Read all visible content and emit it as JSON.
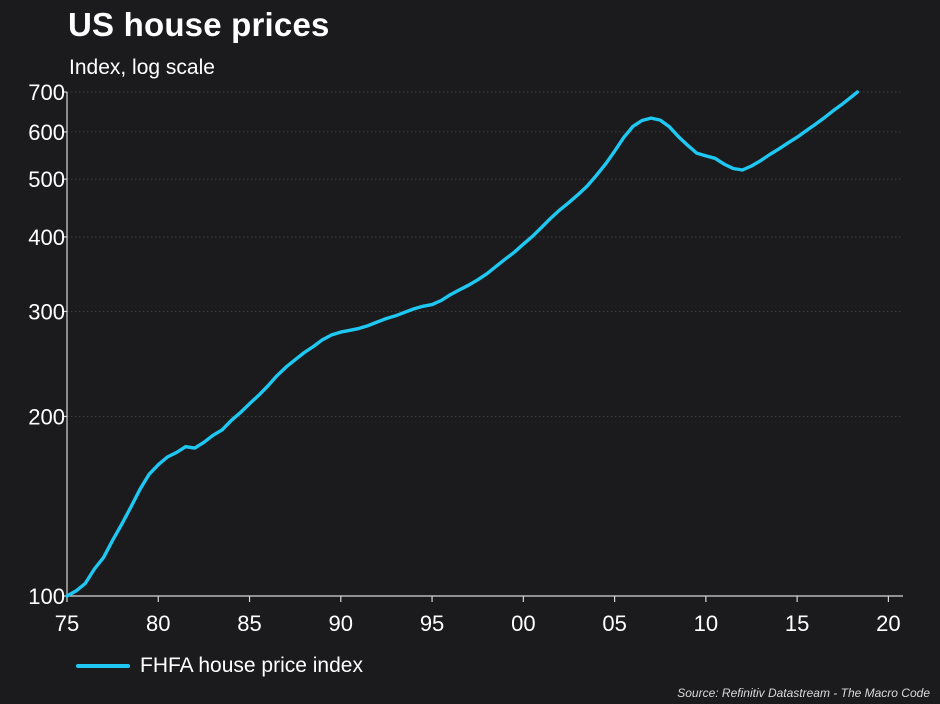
{
  "chart_data": {
    "type": "line",
    "title": "US house prices",
    "subtitle": "Index, log scale",
    "xlabel": "",
    "ylabel": "",
    "x_scale": "linear",
    "y_scale": "log",
    "xlim": [
      1975,
      2020.8
    ],
    "ylim": [
      100,
      700
    ],
    "x_ticks": [
      1975,
      1980,
      1985,
      1990,
      1995,
      2000,
      2005,
      2010,
      2015,
      2020
    ],
    "x_tick_labels": [
      "75",
      "80",
      "85",
      "90",
      "95",
      "00",
      "05",
      "10",
      "15",
      "20"
    ],
    "y_ticks": [
      100,
      200,
      300,
      400,
      500,
      600,
      700
    ],
    "y_tick_labels": [
      "100",
      "200",
      "300",
      "400",
      "500",
      "600",
      "700"
    ],
    "grid": "horizontal-dotted",
    "legend_position": "bottom-left",
    "series": [
      {
        "name": "FHFA house price index",
        "color": "#1ec8f3",
        "points": [
          [
            1975.0,
            100
          ],
          [
            1975.5,
            102
          ],
          [
            1976.0,
            105
          ],
          [
            1976.5,
            111
          ],
          [
            1977.0,
            116
          ],
          [
            1977.5,
            124
          ],
          [
            1978.0,
            132
          ],
          [
            1978.5,
            141
          ],
          [
            1979.0,
            151
          ],
          [
            1979.5,
            160
          ],
          [
            1980.0,
            166
          ],
          [
            1980.5,
            171
          ],
          [
            1981.0,
            174
          ],
          [
            1981.5,
            178
          ],
          [
            1982.0,
            177
          ],
          [
            1982.5,
            181
          ],
          [
            1983.0,
            186
          ],
          [
            1983.5,
            190
          ],
          [
            1984.0,
            197
          ],
          [
            1984.5,
            203
          ],
          [
            1985.0,
            210
          ],
          [
            1985.5,
            217
          ],
          [
            1986.0,
            225
          ],
          [
            1986.5,
            234
          ],
          [
            1987.0,
            242
          ],
          [
            1987.5,
            249
          ],
          [
            1988.0,
            256
          ],
          [
            1988.5,
            262
          ],
          [
            1989.0,
            269
          ],
          [
            1989.5,
            274
          ],
          [
            1990.0,
            277
          ],
          [
            1990.5,
            279
          ],
          [
            1991.0,
            281
          ],
          [
            1991.5,
            284
          ],
          [
            1992.0,
            288
          ],
          [
            1992.5,
            292
          ],
          [
            1993.0,
            295
          ],
          [
            1993.5,
            299
          ],
          [
            1994.0,
            303
          ],
          [
            1994.5,
            306
          ],
          [
            1995.0,
            308
          ],
          [
            1995.5,
            313
          ],
          [
            1996.0,
            320
          ],
          [
            1996.5,
            326
          ],
          [
            1997.0,
            332
          ],
          [
            1997.5,
            339
          ],
          [
            1998.0,
            347
          ],
          [
            1998.5,
            357
          ],
          [
            1999.0,
            367
          ],
          [
            1999.5,
            377
          ],
          [
            2000.0,
            389
          ],
          [
            2000.5,
            401
          ],
          [
            2001.0,
            415
          ],
          [
            2001.5,
            430
          ],
          [
            2002.0,
            444
          ],
          [
            2002.5,
            457
          ],
          [
            2003.0,
            471
          ],
          [
            2003.5,
            487
          ],
          [
            2004.0,
            507
          ],
          [
            2004.5,
            530
          ],
          [
            2005.0,
            557
          ],
          [
            2005.5,
            587
          ],
          [
            2006.0,
            613
          ],
          [
            2006.5,
            627
          ],
          [
            2007.0,
            633
          ],
          [
            2007.5,
            628
          ],
          [
            2008.0,
            612
          ],
          [
            2008.5,
            589
          ],
          [
            2009.0,
            570
          ],
          [
            2009.5,
            553
          ],
          [
            2010.0,
            547
          ],
          [
            2010.5,
            542
          ],
          [
            2011.0,
            530
          ],
          [
            2011.5,
            521
          ],
          [
            2012.0,
            518
          ],
          [
            2012.5,
            526
          ],
          [
            2013.0,
            537
          ],
          [
            2013.5,
            550
          ],
          [
            2014.0,
            562
          ],
          [
            2014.5,
            575
          ],
          [
            2015.0,
            588
          ],
          [
            2015.5,
            603
          ],
          [
            2016.0,
            618
          ],
          [
            2016.5,
            634
          ],
          [
            2017.0,
            652
          ],
          [
            2017.5,
            669
          ],
          [
            2018.0,
            688
          ],
          [
            2018.3,
            700
          ]
        ]
      }
    ],
    "annotations": [
      "Source: Refinitiv Datastream - The Macro Code"
    ]
  }
}
